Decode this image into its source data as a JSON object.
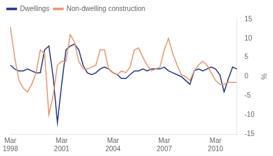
{
  "chart_data": {
    "type": "line",
    "categories": [
      "Mar\n1998",
      null,
      null,
      null,
      null,
      null,
      null,
      null,
      null,
      null,
      null,
      null,
      "Mar\n2001",
      null,
      null,
      null,
      null,
      null,
      null,
      null,
      null,
      null,
      null,
      null,
      "Mar\n2004",
      null,
      null,
      null,
      null,
      null,
      null,
      null,
      null,
      null,
      null,
      null,
      "Mar\n2007",
      null,
      null,
      null,
      null,
      null,
      null,
      null,
      null,
      null,
      null,
      null,
      "Mar\n2010",
      null,
      null,
      null,
      null,
      null
    ],
    "series": [
      {
        "name": "Non-dwelling construction",
        "color": "#e8956d",
        "values": [
          13,
          5,
          -1,
          -3,
          -4,
          -2,
          1,
          7,
          6,
          -10,
          -5,
          3,
          4,
          4,
          11,
          9,
          4,
          2,
          2,
          2.5,
          3,
          7,
          7,
          2,
          1,
          0.5,
          1.5,
          1,
          2.5,
          7,
          7.5,
          5,
          3,
          1.5,
          2,
          2.5,
          7,
          10,
          6,
          3,
          0.5,
          0,
          -1,
          1.5,
          3,
          4,
          3,
          1,
          -1,
          -2,
          -2,
          -1.5,
          -1.5,
          -1.5
        ]
      },
      {
        "name": "Dwellings",
        "color": "#1f3580",
        "values": [
          3,
          2,
          1.5,
          1.5,
          2,
          1.5,
          1,
          1,
          7,
          8,
          0,
          -12,
          -2,
          7,
          8,
          8.5,
          7,
          3,
          1,
          0.5,
          1,
          2,
          2.5,
          2,
          1,
          0.5,
          -0.5,
          -0.5,
          0.5,
          1.5,
          1.5,
          2,
          1.5,
          2,
          2,
          2,
          2.5,
          1.5,
          1,
          0.5,
          0,
          -1,
          -2,
          1.5,
          2,
          1.5,
          2,
          2.5,
          2,
          0.5,
          -4,
          -0.5,
          2.5,
          2
        ]
      }
    ],
    "ylabel": "%",
    "ylim": [
      -15,
      15
    ],
    "yticks": [
      -15,
      -10,
      -5,
      0,
      5,
      10,
      15
    ],
    "grid": false,
    "legend": "upper left"
  }
}
